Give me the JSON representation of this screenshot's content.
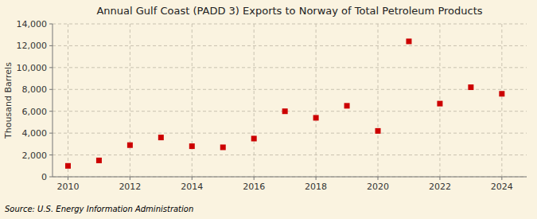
{
  "chart_data": {
    "type": "scatter",
    "title": "Annual Gulf Coast (PADD 3) Exports to Norway of Total Petroleum Products",
    "ylabel": "Thousand Barrels",
    "source": "Source: U.S. Energy Information Administration",
    "x": [
      2010,
      2011,
      2012,
      2013,
      2014,
      2015,
      2016,
      2017,
      2018,
      2019,
      2020,
      2021,
      2022,
      2023,
      2024
    ],
    "values": [
      1000,
      1500,
      2900,
      3600,
      2800,
      2700,
      3500,
      6000,
      5400,
      6500,
      4200,
      12400,
      6700,
      8200,
      7600
    ],
    "color": "#cc0000",
    "marker": "square",
    "xlim": [
      2009.5,
      2024.8
    ],
    "xticks": [
      2010,
      2012,
      2014,
      2016,
      2018,
      2020,
      2022,
      2024
    ],
    "ylim": [
      0,
      14000
    ],
    "yticks": [
      0,
      {
        "value": 2000,
        "label": "2,000"
      },
      {
        "value": 4000,
        "label": "4,000"
      },
      {
        "value": 6000,
        "label": "6,000"
      },
      {
        "value": 8000,
        "label": "8,000"
      },
      {
        "value": 10000,
        "label": "10,000"
      },
      {
        "value": 12000,
        "label": "12,000"
      },
      {
        "value": 14000,
        "label": "14,000"
      }
    ],
    "grid": true
  }
}
